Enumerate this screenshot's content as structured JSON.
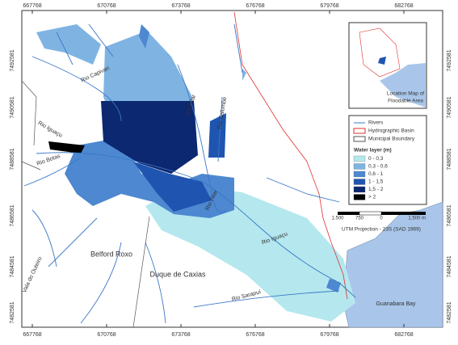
{
  "map": {
    "x_coords": [
      "667768",
      "670768",
      "673768",
      "676768",
      "679768",
      "682768"
    ],
    "y_coords": [
      "7492581",
      "7490581",
      "7488581",
      "7486581",
      "7484581",
      "7482581"
    ],
    "place_labels": [
      "Rio Capivari",
      "Rio Pilar",
      "Rio Calombe",
      "Rio Iguaçu",
      "Rio Botas",
      "Rio Pilar",
      "Vala do Outeiro",
      "Belford Roxo",
      "Duque de Caxias",
      "Rio Iguaçu",
      "Rio Sarapuí",
      "Guanabara Bay"
    ],
    "inset": {
      "title_lines": [
        "Location Map of",
        "Floodable Area"
      ]
    },
    "legend": {
      "lines": [
        "Rivers",
        "Hydrographic Basin",
        "Municipal Boundary"
      ],
      "water_title": "Water layer (m)",
      "classes": [
        {
          "label": "0 - 0,3",
          "color": "#b4e8ee"
        },
        {
          "label": "0,3 - 0,6",
          "color": "#7fb4e2"
        },
        {
          "label": "0,6 - 1",
          "color": "#4d88d0"
        },
        {
          "label": "1 - 1,5",
          "color": "#1f55b0"
        },
        {
          "label": "1,5 - 2",
          "color": "#0c2870"
        },
        {
          "label": "> 2",
          "color": "#000000"
        }
      ]
    },
    "scale": {
      "labels": [
        "1.500",
        "750",
        "0",
        "1.500 m"
      ],
      "projection": "UTM Projection - 23S (SAD 1969)"
    }
  }
}
